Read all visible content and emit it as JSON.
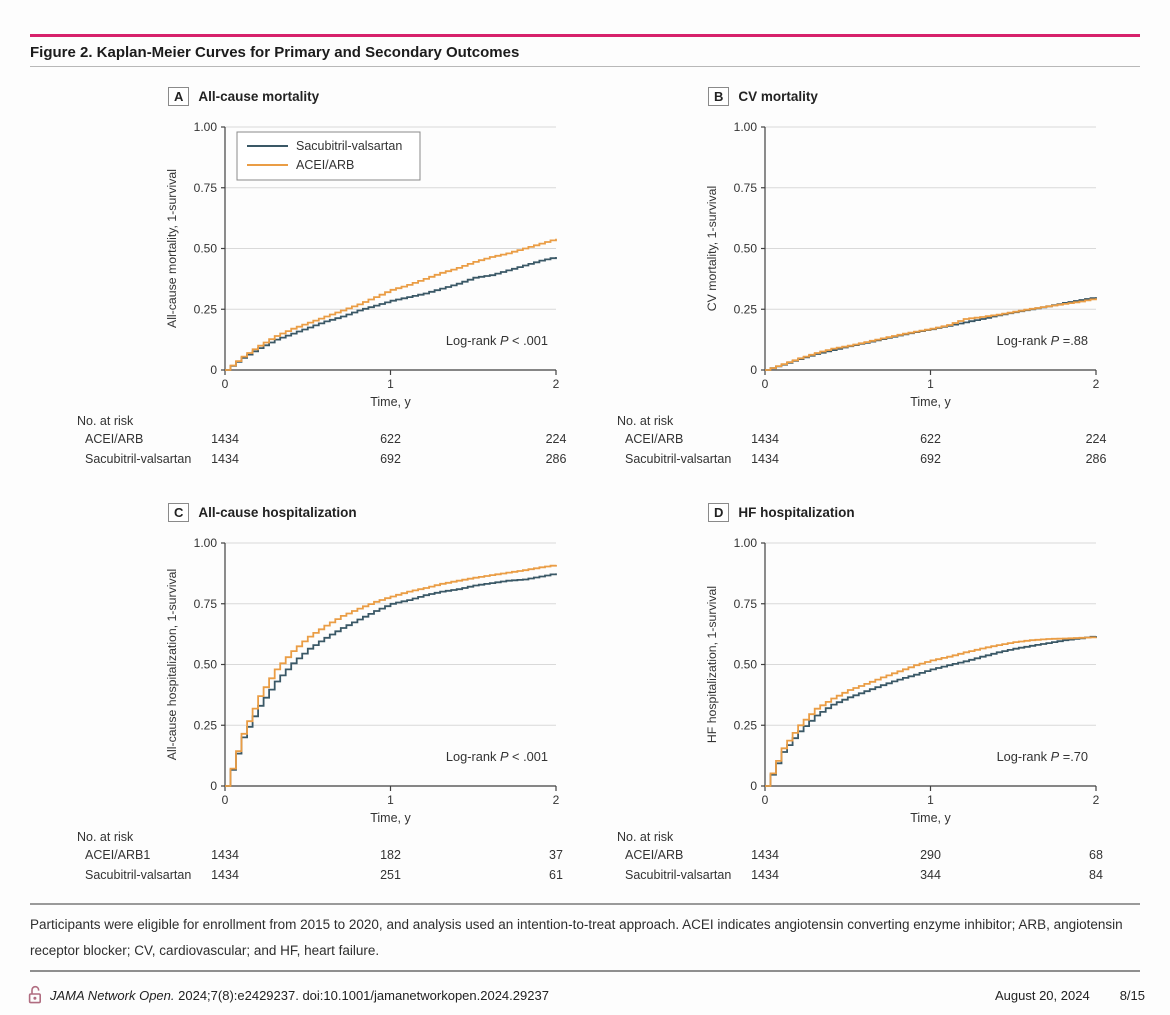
{
  "page": {
    "title": "Figure 2. Kaplan-Meier Curves for Primary and Secondary Outcomes",
    "caption": "Participants were eligible for enrollment from 2015 to 2020, and analysis used an intention-to-treat approach. ACEI indicates angiotensin converting enzyme inhibitor; ARB, angiotensin receptor blocker; CV, cardiovascular; and HF, heart failure.",
    "footer": {
      "journal": "JAMA Network Open.",
      "citation": " 2024;7(8):e2429237. doi:10.1001/jamanetworkopen.2024.29237",
      "date": "August 20, 2024",
      "page_num": "8/15",
      "lock_icon": "open-access-lock"
    }
  },
  "colors": {
    "accent_pink": "#d7216b",
    "sacubitril_line": "#3a5866",
    "acei_line": "#ea9d45",
    "grid": "#d9d9d9",
    "axis": "#404040",
    "text": "#333333",
    "lock_pink": "#b06c80",
    "legend_border": "#8a8a8a"
  },
  "legend": {
    "items": [
      {
        "label": "Sacubitril-valsartan",
        "color": "#3a5866"
      },
      {
        "label": "ACEI/ARB",
        "color": "#ea9d45"
      }
    ]
  },
  "chart_data": [
    {
      "type": "line",
      "id": "A",
      "label": "All-cause mortality",
      "ylabel": "All-cause mortality, 1-survival",
      "xlabel": "Time, y",
      "ylim": [
        0,
        1.0
      ],
      "yticks": [
        0,
        0.25,
        0.5,
        0.75,
        1.0
      ],
      "ytick_labels": [
        "0",
        "0.25",
        "0.50",
        "0.75",
        "1.00"
      ],
      "xticks": [
        0,
        1,
        2
      ],
      "xtick_labels": [
        "0",
        "1",
        "2"
      ],
      "grid": true,
      "legend_position": "upper-left-inside",
      "p_pre": "Log-rank ",
      "p_sym": "P",
      "p_post": " < .001",
      "x": [
        0,
        0.1,
        0.2,
        0.3,
        0.4,
        0.5,
        0.6,
        0.7,
        0.8,
        0.9,
        1.0,
        1.1,
        1.2,
        1.3,
        1.4,
        1.5,
        1.6,
        1.7,
        1.8,
        1.9,
        2.0
      ],
      "series": [
        {
          "name": "Sacubitril-valsartan",
          "color": "#3a5866",
          "values": [
            0,
            0.05,
            0.09,
            0.125,
            0.15,
            0.175,
            0.2,
            0.22,
            0.245,
            0.265,
            0.285,
            0.3,
            0.315,
            0.335,
            0.355,
            0.38,
            0.39,
            0.41,
            0.43,
            0.45,
            0.465
          ]
        },
        {
          "name": "ACEI/ARB",
          "color": "#ea9d45",
          "values": [
            0,
            0.055,
            0.1,
            0.14,
            0.17,
            0.195,
            0.22,
            0.245,
            0.27,
            0.3,
            0.33,
            0.35,
            0.375,
            0.4,
            0.42,
            0.445,
            0.465,
            0.48,
            0.5,
            0.52,
            0.54
          ]
        }
      ],
      "risk": {
        "title": "No. at risk",
        "rows": [
          {
            "label": "ACEI/ARB",
            "values": [
              "1434",
              "622",
              "224"
            ]
          },
          {
            "label": "Sacubitril-valsartan",
            "values": [
              "1434",
              "692",
              "286"
            ]
          }
        ]
      }
    },
    {
      "type": "line",
      "id": "B",
      "label": "CV mortality",
      "ylabel": "CV mortality, 1-survival",
      "xlabel": "Time, y",
      "ylim": [
        0,
        1.0
      ],
      "yticks": [
        0,
        0.25,
        0.5,
        0.75,
        1.0
      ],
      "ytick_labels": [
        "0",
        "0.25",
        "0.50",
        "0.75",
        "1.00"
      ],
      "xticks": [
        0,
        1,
        2
      ],
      "xtick_labels": [
        "0",
        "1",
        "2"
      ],
      "grid": true,
      "p_pre": "Log-rank ",
      "p_sym": "P",
      "p_post": " =.88",
      "x": [
        0,
        0.1,
        0.2,
        0.3,
        0.4,
        0.5,
        0.6,
        0.7,
        0.8,
        0.9,
        1.0,
        1.1,
        1.2,
        1.3,
        1.4,
        1.5,
        1.6,
        1.7,
        1.8,
        1.9,
        2.0
      ],
      "series": [
        {
          "name": "Sacubitril-valsartan",
          "color": "#3a5866",
          "values": [
            0,
            0.022,
            0.045,
            0.066,
            0.082,
            0.098,
            0.112,
            0.127,
            0.142,
            0.156,
            0.168,
            0.182,
            0.196,
            0.21,
            0.225,
            0.238,
            0.25,
            0.262,
            0.276,
            0.288,
            0.3
          ]
        },
        {
          "name": "ACEI/ARB",
          "color": "#ea9d45",
          "values": [
            0,
            0.024,
            0.048,
            0.07,
            0.088,
            0.1,
            0.115,
            0.13,
            0.145,
            0.158,
            0.17,
            0.185,
            0.21,
            0.218,
            0.228,
            0.24,
            0.252,
            0.262,
            0.272,
            0.282,
            0.295
          ]
        }
      ],
      "risk": {
        "title": "No. at risk",
        "rows": [
          {
            "label": "ACEI/ARB",
            "values": [
              "1434",
              "622",
              "224"
            ]
          },
          {
            "label": "Sacubitril-valsartan",
            "values": [
              "1434",
              "692",
              "286"
            ]
          }
        ]
      }
    },
    {
      "type": "line",
      "id": "C",
      "label": "All-cause hospitalization",
      "ylabel": "All-cause hospitalization, 1-survival",
      "xlabel": "Time, y",
      "ylim": [
        0,
        1.0
      ],
      "yticks": [
        0,
        0.25,
        0.5,
        0.75,
        1.0
      ],
      "ytick_labels": [
        "0",
        "0.25",
        "0.50",
        "0.75",
        "1.00"
      ],
      "xticks": [
        0,
        1,
        2
      ],
      "xtick_labels": [
        "0",
        "1",
        "2"
      ],
      "grid": true,
      "p_pre": "Log-rank ",
      "p_sym": "P",
      "p_post": " < .001",
      "x": [
        0,
        0.1,
        0.2,
        0.3,
        0.4,
        0.5,
        0.6,
        0.7,
        0.8,
        0.9,
        1.0,
        1.1,
        1.2,
        1.3,
        1.4,
        1.5,
        1.6,
        1.7,
        1.8,
        1.9,
        2.0
      ],
      "series": [
        {
          "name": "Sacubitril-valsartan",
          "color": "#3a5866",
          "values": [
            0,
            0.2,
            0.33,
            0.43,
            0.505,
            0.565,
            0.61,
            0.65,
            0.685,
            0.72,
            0.75,
            0.765,
            0.785,
            0.8,
            0.81,
            0.825,
            0.835,
            0.845,
            0.85,
            0.862,
            0.875
          ]
        },
        {
          "name": "ACEI/ARB",
          "color": "#ea9d45",
          "values": [
            0,
            0.215,
            0.37,
            0.48,
            0.555,
            0.615,
            0.66,
            0.7,
            0.73,
            0.758,
            0.78,
            0.8,
            0.815,
            0.832,
            0.845,
            0.857,
            0.868,
            0.878,
            0.888,
            0.9,
            0.91
          ]
        }
      ],
      "risk": {
        "title": "No. at risk",
        "rows": [
          {
            "label": "ACEI/ARB1",
            "values": [
              "1434",
              "182",
              "37"
            ]
          },
          {
            "label": "Sacubitril-valsartan",
            "values": [
              "1434",
              "251",
              "61"
            ]
          }
        ]
      }
    },
    {
      "type": "line",
      "id": "D",
      "label": "HF hospitalization",
      "ylabel": "HF hospitalization, 1-survival",
      "xlabel": "Time, y",
      "ylim": [
        0,
        1.0
      ],
      "yticks": [
        0,
        0.25,
        0.5,
        0.75,
        1.0
      ],
      "ytick_labels": [
        "0",
        "0.25",
        "0.50",
        "0.75",
        "1.00"
      ],
      "xticks": [
        0,
        1,
        2
      ],
      "xtick_labels": [
        "0",
        "1",
        "2"
      ],
      "grid": true,
      "p_pre": "Log-rank ",
      "p_sym": "P",
      "p_post": " =.70",
      "x": [
        0,
        0.1,
        0.2,
        0.3,
        0.4,
        0.5,
        0.6,
        0.7,
        0.8,
        0.9,
        1.0,
        1.1,
        1.2,
        1.3,
        1.4,
        1.5,
        1.6,
        1.7,
        1.8,
        1.9,
        2.0
      ],
      "series": [
        {
          "name": "Sacubitril-valsartan",
          "color": "#3a5866",
          "values": [
            0,
            0.14,
            0.225,
            0.29,
            0.335,
            0.365,
            0.39,
            0.415,
            0.438,
            0.458,
            0.48,
            0.497,
            0.513,
            0.532,
            0.55,
            0.565,
            0.577,
            0.588,
            0.6,
            0.608,
            0.617
          ]
        },
        {
          "name": "ACEI/ARB",
          "color": "#ea9d45",
          "values": [
            0,
            0.155,
            0.25,
            0.318,
            0.36,
            0.395,
            0.42,
            0.447,
            0.472,
            0.497,
            0.517,
            0.532,
            0.55,
            0.566,
            0.58,
            0.592,
            0.6,
            0.605,
            0.607,
            0.61,
            0.612
          ]
        }
      ],
      "risk": {
        "title": "No. at risk",
        "rows": [
          {
            "label": "ACEI/ARB",
            "values": [
              "1434",
              "290",
              "68"
            ]
          },
          {
            "label": "Sacubitril-valsartan",
            "values": [
              "1434",
              "344",
              "84"
            ]
          }
        ]
      }
    }
  ]
}
